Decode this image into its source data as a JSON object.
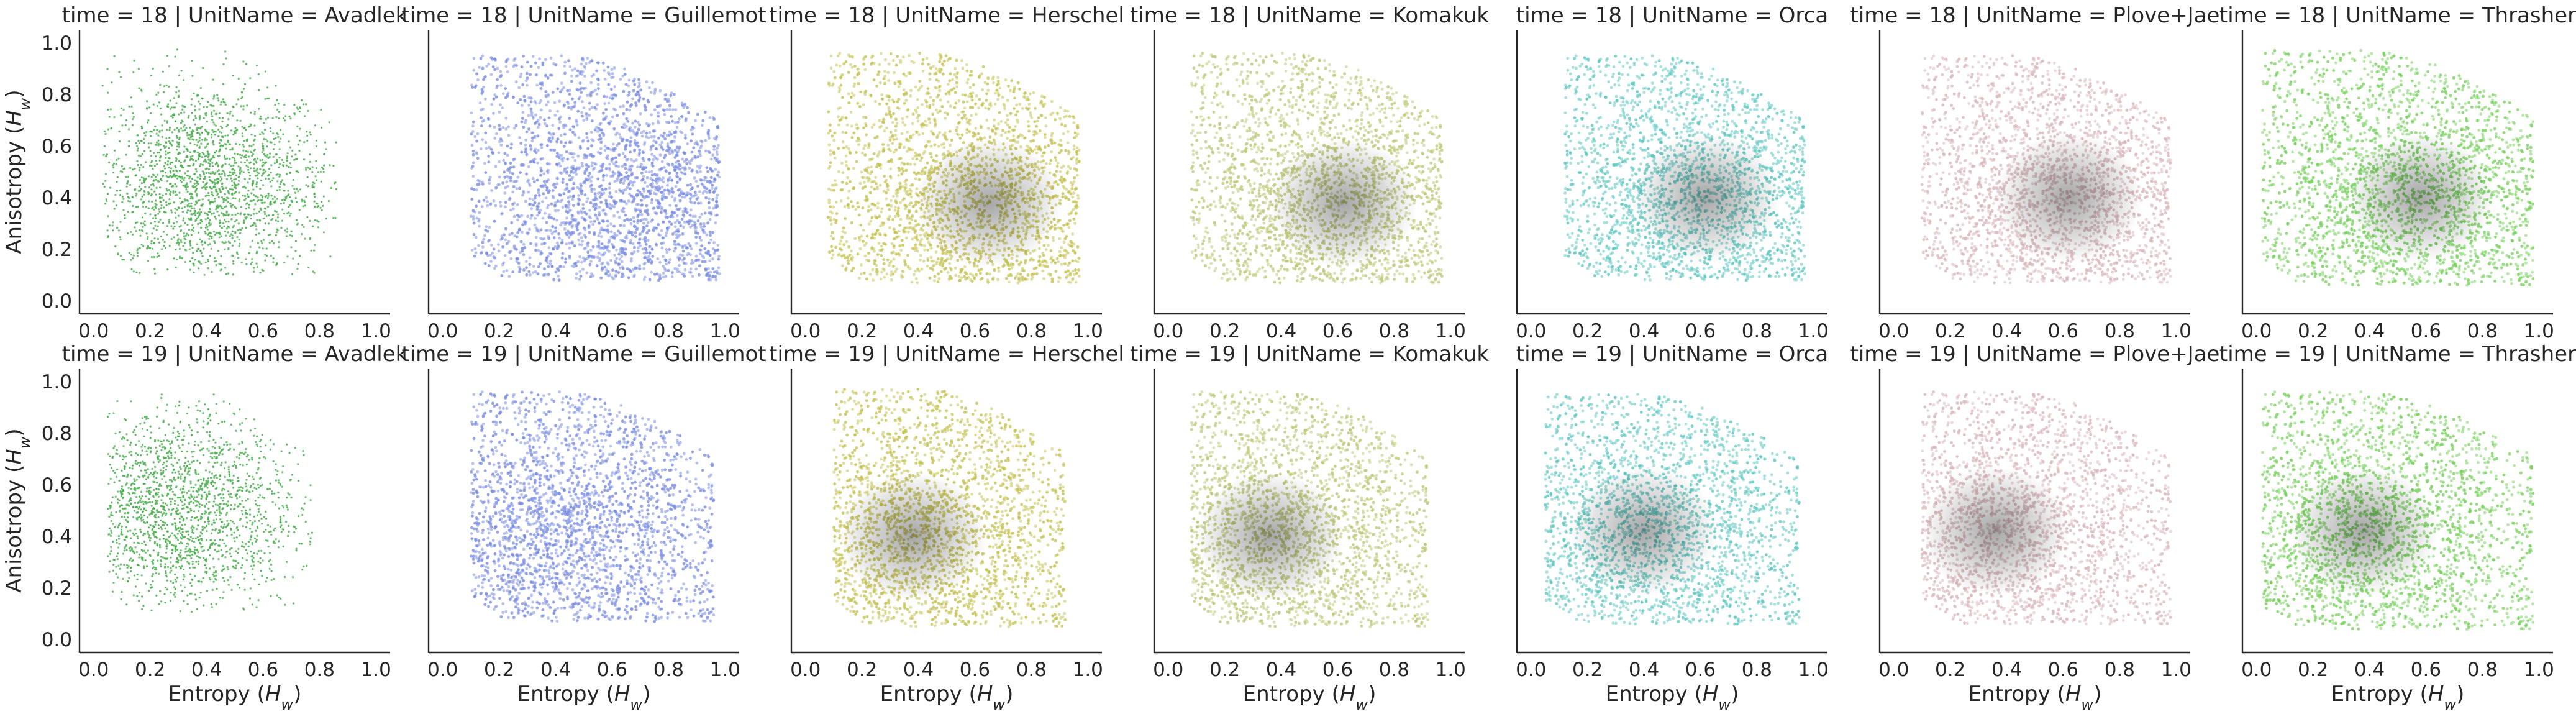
{
  "chart_data": {
    "type": "scatter",
    "layout": "facet-grid",
    "xlabel": "Entropy",
    "xlabel_sub": "w",
    "ylabel": "Anisotropy",
    "ylabel_sub": "w",
    "axis_symbol": "H",
    "xlim": [
      -0.05,
      1.05
    ],
    "ylim": [
      -0.05,
      1.05
    ],
    "xticks": [
      "0.0",
      "0.2",
      "0.4",
      "0.6",
      "0.8",
      "1.0"
    ],
    "yticks": [
      "0.0",
      "0.2",
      "0.4",
      "0.6",
      "0.8",
      "1.0"
    ],
    "grid": false,
    "rows": [
      {
        "time": 18,
        "panels": [
          {
            "title": "time = 18 | UnitName = Avadlek",
            "unit": "Avadlek",
            "color": "#4caf50",
            "density": "sparse",
            "center": [
              0.4,
              0.45
            ],
            "x_range": [
              0.03,
              0.86
            ],
            "y_range": [
              0.1,
              0.98
            ]
          },
          {
            "title": "time = 18 | UnitName = Guillemot",
            "unit": "Guillemot",
            "color": "#7b8ee2",
            "density": "dense",
            "center": [
              0.72,
              0.4
            ],
            "x_range": [
              0.1,
              0.98
            ],
            "y_range": [
              0.08,
              0.95
            ]
          },
          {
            "title": "time = 18 | UnitName = Herschel",
            "unit": "Herschel",
            "color": "#c4c254",
            "density": "dense",
            "center": [
              0.65,
              0.38
            ],
            "x_range": [
              0.08,
              0.97
            ],
            "y_range": [
              0.07,
              0.96
            ]
          },
          {
            "title": "time = 18 | UnitName = Komakuk",
            "unit": "Komakuk",
            "color": "#c0c879",
            "density": "dense",
            "center": [
              0.62,
              0.38
            ],
            "x_range": [
              0.08,
              0.97
            ],
            "y_range": [
              0.07,
              0.96
            ]
          },
          {
            "title": "time = 18 | UnitName = Orca",
            "unit": "Orca",
            "color": "#5dc7bf",
            "density": "medium",
            "center": [
              0.62,
              0.4
            ],
            "x_range": [
              0.12,
              0.97
            ],
            "y_range": [
              0.08,
              0.95
            ]
          },
          {
            "title": "time = 18 | UnitName = Plove+Jae",
            "unit": "Plove+Jae",
            "color": "#d9b8bb",
            "density": "dense",
            "center": [
              0.62,
              0.4
            ],
            "x_range": [
              0.1,
              0.98
            ],
            "y_range": [
              0.07,
              0.95
            ]
          },
          {
            "title": "time = 18 | UnitName = Thrasher",
            "unit": "Thrasher",
            "color": "#78d25e",
            "density": "dense",
            "center": [
              0.58,
              0.4
            ],
            "x_range": [
              0.02,
              0.98
            ],
            "y_range": [
              0.06,
              0.97
            ]
          }
        ]
      },
      {
        "time": 19,
        "panels": [
          {
            "title": "time = 19 | UnitName = Avadlek",
            "unit": "Avadlek",
            "color": "#4caf50",
            "density": "sparse",
            "center": [
              0.28,
              0.5
            ],
            "x_range": [
              0.05,
              0.78
            ],
            "y_range": [
              0.1,
              0.95
            ]
          },
          {
            "title": "time = 19 | UnitName = Guillemot",
            "unit": "Guillemot",
            "color": "#7b8ee2",
            "density": "dense",
            "center": [
              0.4,
              0.42
            ],
            "x_range": [
              0.1,
              0.96
            ],
            "y_range": [
              0.07,
              0.96
            ]
          },
          {
            "title": "time = 19 | UnitName = Herschel",
            "unit": "Herschel",
            "color": "#c4c254",
            "density": "dense",
            "center": [
              0.38,
              0.4
            ],
            "x_range": [
              0.1,
              0.92
            ],
            "y_range": [
              0.05,
              0.97
            ]
          },
          {
            "title": "time = 19 | UnitName = Komakuk",
            "unit": "Komakuk",
            "color": "#c0c879",
            "density": "dense",
            "center": [
              0.36,
              0.4
            ],
            "x_range": [
              0.08,
              0.92
            ],
            "y_range": [
              0.05,
              0.96
            ]
          },
          {
            "title": "time = 19 | UnitName = Orca",
            "unit": "Orca",
            "color": "#5dc7bf",
            "density": "medium",
            "center": [
              0.4,
              0.42
            ],
            "x_range": [
              0.05,
              0.95
            ],
            "y_range": [
              0.06,
              0.95
            ]
          },
          {
            "title": "time = 19 | UnitName = Plove+Jae",
            "unit": "Plove+Jae",
            "color": "#d9b8bb",
            "density": "dense",
            "center": [
              0.36,
              0.42
            ],
            "x_range": [
              0.1,
              0.98
            ],
            "y_range": [
              0.06,
              0.96
            ]
          },
          {
            "title": "time = 19 | UnitName = Thrasher",
            "unit": "Thrasher",
            "color": "#78d25e",
            "density": "dense",
            "center": [
              0.38,
              0.42
            ],
            "x_range": [
              0.02,
              0.98
            ],
            "y_range": [
              0.04,
              0.96
            ]
          }
        ]
      }
    ]
  }
}
